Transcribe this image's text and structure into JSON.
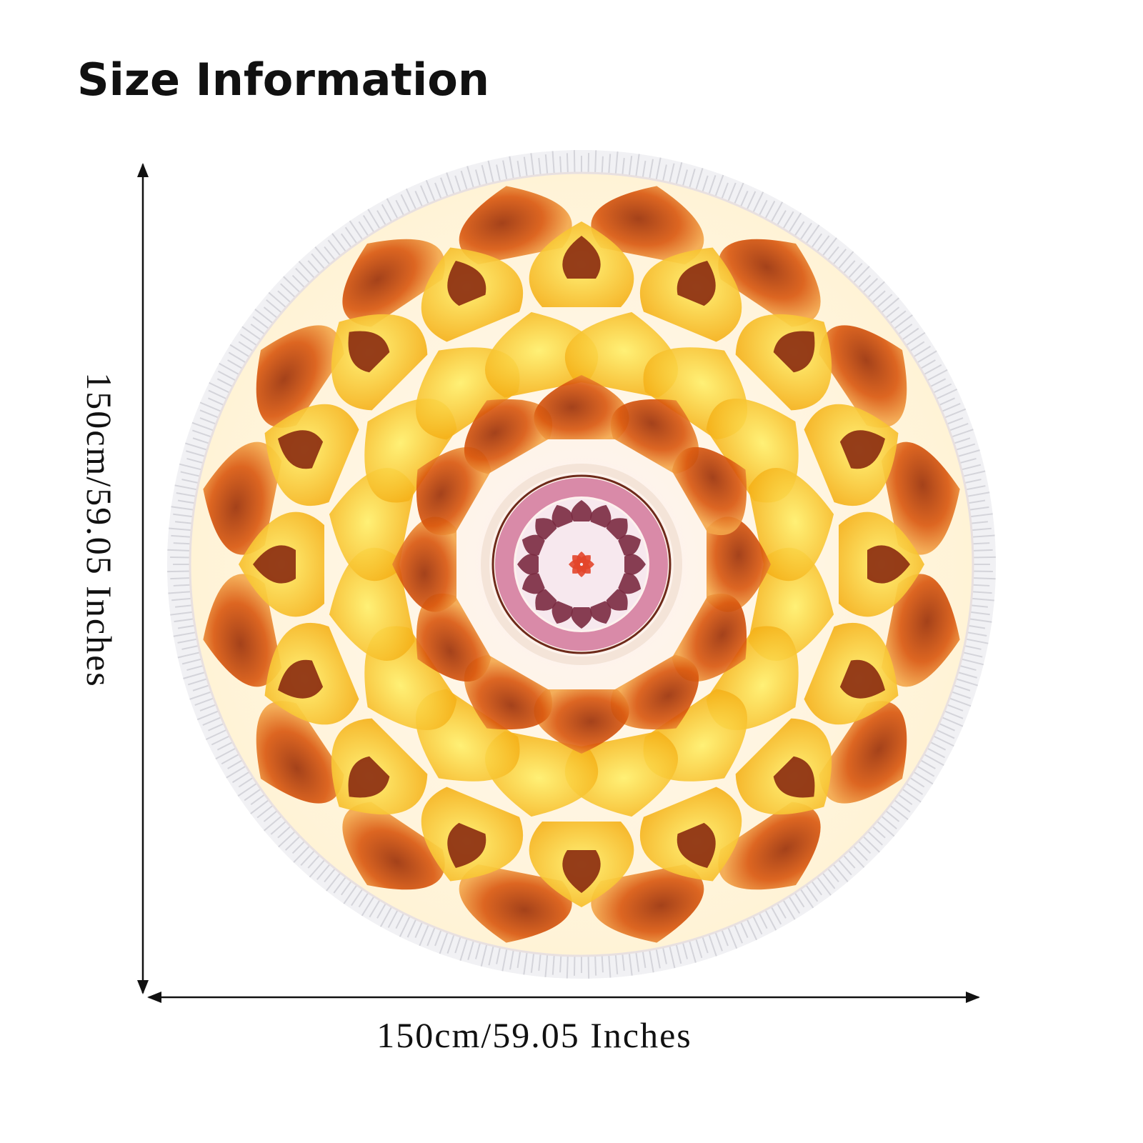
{
  "header": {
    "title": "Size Information"
  },
  "dimensions": {
    "height_label": "150cm/59.05 Inches",
    "width_label": "150cm/59.05 Inches"
  }
}
